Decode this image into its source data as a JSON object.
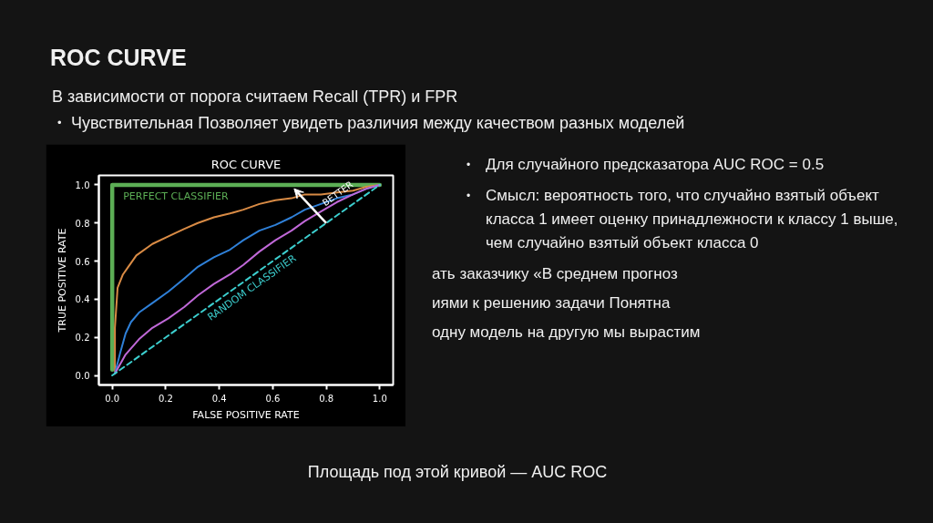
{
  "chart_data": {
    "type": "line",
    "title": "ROC CURVE",
    "xlabel": "FALSE POSITIVE RATE",
    "ylabel": "TRUE POSITIVE RATE",
    "xlim": [
      -0.05,
      1.05
    ],
    "ylim": [
      -0.05,
      1.05
    ],
    "xticks": [
      {
        "value": 0,
        "label": "0.0"
      },
      0.2,
      0.4,
      0.6,
      0.8,
      {
        "value": 1,
        "label": "1.0"
      }
    ],
    "yticks": [
      {
        "value": 0,
        "label": "0.0"
      },
      0.2,
      0.4,
      0.6,
      0.8,
      {
        "value": 1,
        "label": "1.0"
      }
    ],
    "grid": false,
    "legend": false,
    "series": [
      {
        "name": "PERFECT CLASSIFIER",
        "color": "#5cae55",
        "x": [
          0,
          0,
          1
        ],
        "values": [
          0.03,
          1,
          1
        ]
      },
      {
        "color": "#d98b45",
        "x": [
          0.01,
          0.01,
          0.02,
          0.04,
          0.06,
          0.09,
          0.15,
          0.21,
          0.27,
          0.32,
          0.38,
          0.44,
          0.49,
          0.55,
          0.61,
          0.67,
          0.72,
          0.78,
          0.84,
          0.9,
          0.95,
          1.0
        ],
        "values": [
          0.02,
          0.25,
          0.46,
          0.53,
          0.57,
          0.63,
          0.69,
          0.73,
          0.77,
          0.8,
          0.83,
          0.85,
          0.87,
          0.9,
          0.92,
          0.93,
          0.95,
          0.95,
          0.96,
          0.97,
          0.99,
          1.0
        ]
      },
      {
        "color": "#2f80d8",
        "x": [
          0.01,
          0.03,
          0.05,
          0.07,
          0.1,
          0.15,
          0.21,
          0.27,
          0.32,
          0.38,
          0.44,
          0.49,
          0.55,
          0.61,
          0.67,
          0.72,
          0.78,
          0.84,
          0.9,
          0.95,
          1.0
        ],
        "values": [
          0.01,
          0.12,
          0.22,
          0.28,
          0.33,
          0.38,
          0.44,
          0.51,
          0.57,
          0.62,
          0.66,
          0.71,
          0.76,
          0.79,
          0.83,
          0.87,
          0.9,
          0.93,
          0.95,
          0.98,
          1.0
        ]
      },
      {
        "color": "#c068d8",
        "x": [
          0.01,
          0.05,
          0.1,
          0.15,
          0.21,
          0.27,
          0.32,
          0.38,
          0.44,
          0.49,
          0.55,
          0.61,
          0.67,
          0.72,
          0.78,
          0.84,
          0.9,
          0.95,
          1.0
        ],
        "values": [
          0.01,
          0.11,
          0.19,
          0.25,
          0.3,
          0.36,
          0.42,
          0.48,
          0.53,
          0.58,
          0.65,
          0.71,
          0.76,
          0.81,
          0.86,
          0.91,
          0.95,
          0.98,
          1.0
        ]
      },
      {
        "name": "RANDOM CLASSIFIER",
        "color": "#3ccfcf",
        "line_style": "dashed",
        "x": [
          0,
          1
        ],
        "values": [
          0,
          1
        ]
      }
    ],
    "annotations": [
      "ROC CURVE",
      "В зависимости от порога считаем Recall (TPR) и FPR",
      "•",
      "Чувствительная Позволяет увидеть различия между качеством разных моделей",
      "•",
      "Для случайного предсказатора AUC ROC = 0.5",
      "•",
      "Смысл: вероятность того, что случайно взятый объект класса 1 имеет оценку принадлежности к классу 1 выше, чем случайно взятый объект класса 0",
      "ать заказчику «В среднем прогноз",
      "иями к решению задачи Понятна",
      "одну модель на другую мы вырастим",
      "Площадь под этой кривой — AUC ROC",
      {
        "text": "BETTER",
        "x": 0.8,
        "y": 0.88
      }
    ]
  }
}
